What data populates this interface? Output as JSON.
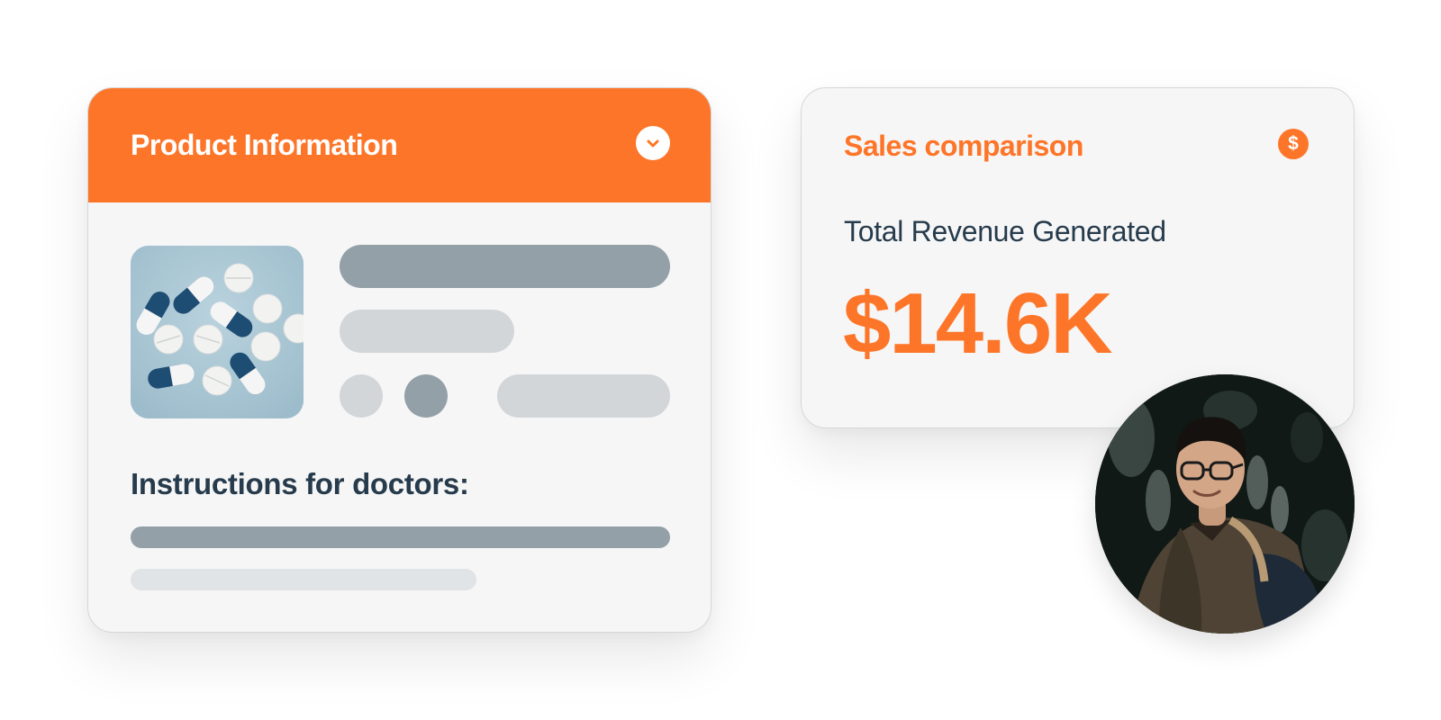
{
  "product_card": {
    "title": "Product Information",
    "expand_icon": "chevron-down-icon",
    "instructions_heading": "Instructions for doctors:"
  },
  "sales_card": {
    "title": "Sales comparison",
    "badge_icon": "dollar-icon",
    "badge_symbol": "$",
    "metric_label": "Total Revenue Generated",
    "metric_value": "$14.6K"
  },
  "colors": {
    "accent": "#fd7528",
    "text_dark": "#263b4c",
    "card_bg": "#f6f6f6",
    "skeleton_dark": "#93a0a8",
    "skeleton_light": "#d2d6d9"
  }
}
